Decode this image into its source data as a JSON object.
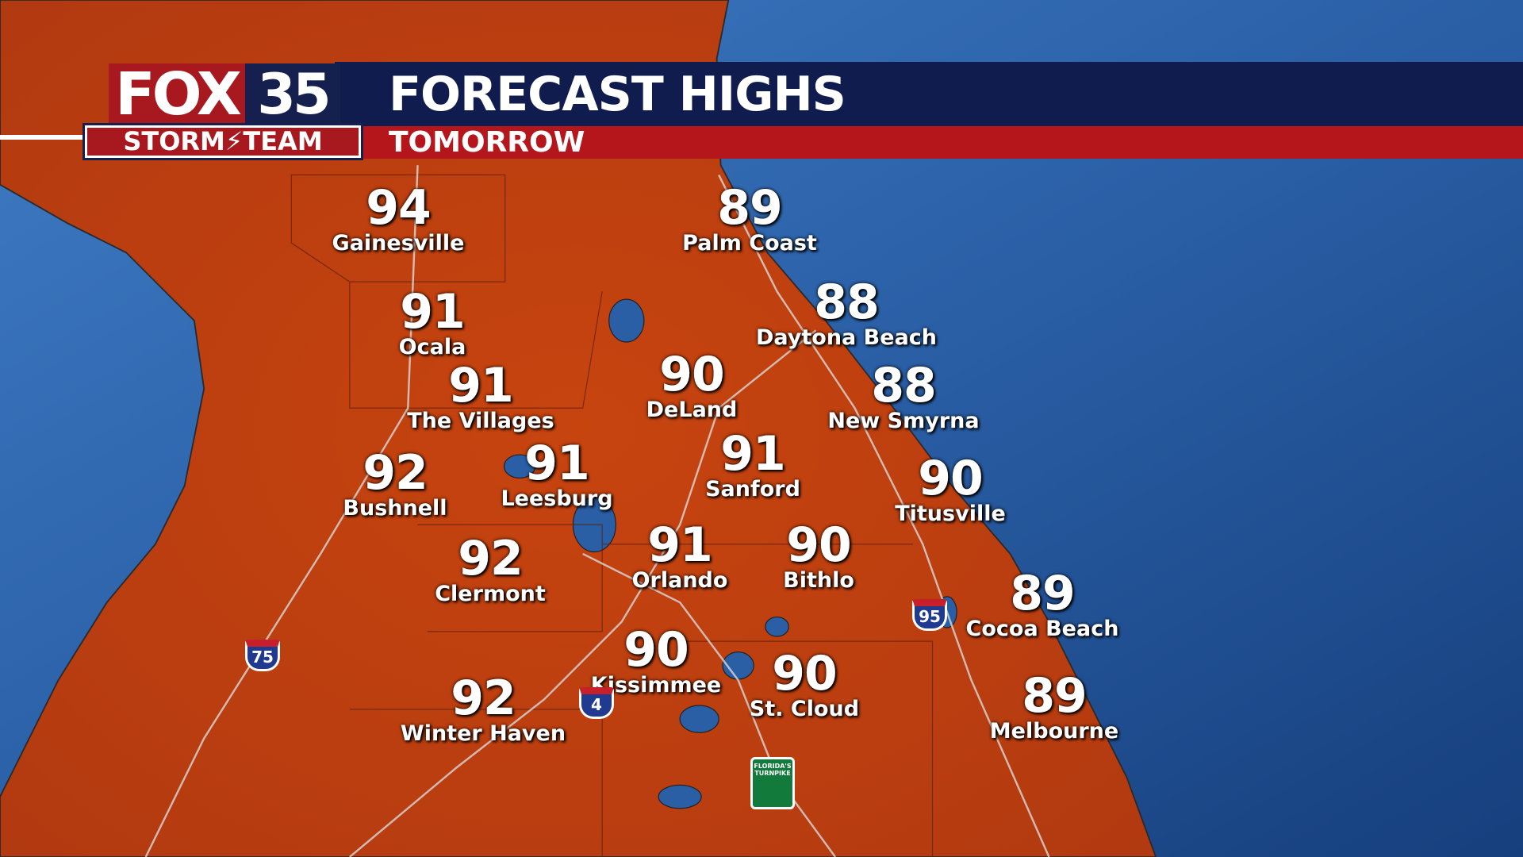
{
  "header": {
    "title": "FORECAST HIGHS",
    "subtitle": "TOMORROW"
  },
  "logo": {
    "fox": "FOX",
    "channel": "35",
    "team": "STORM⚡TEAM"
  },
  "colors": {
    "land": "#c2410f",
    "ocean": "#2a5fa6",
    "header_navy": "#0f1c4d",
    "header_red": "#b5161c"
  },
  "cities": [
    {
      "name": "Gainesville",
      "temp": "94"
    },
    {
      "name": "Palm Coast",
      "temp": "89"
    },
    {
      "name": "Ocala",
      "temp": "91"
    },
    {
      "name": "Daytona Beach",
      "temp": "88"
    },
    {
      "name": "The Villages",
      "temp": "91"
    },
    {
      "name": "DeLand",
      "temp": "90"
    },
    {
      "name": "New Smyrna",
      "temp": "88"
    },
    {
      "name": "Bushnell",
      "temp": "92"
    },
    {
      "name": "Leesburg",
      "temp": "91"
    },
    {
      "name": "Sanford",
      "temp": "91"
    },
    {
      "name": "Titusville",
      "temp": "90"
    },
    {
      "name": "Clermont",
      "temp": "92"
    },
    {
      "name": "Orlando",
      "temp": "91"
    },
    {
      "name": "Bithlo",
      "temp": "90"
    },
    {
      "name": "Cocoa Beach",
      "temp": "89"
    },
    {
      "name": "Kissimmee",
      "temp": "90"
    },
    {
      "name": "St. Cloud",
      "temp": "90"
    },
    {
      "name": "Winter Haven",
      "temp": "92"
    },
    {
      "name": "Melbourne",
      "temp": "89"
    }
  ],
  "shields": {
    "i75": "75",
    "i95": "95",
    "i4": "4",
    "turnpike": "FLORIDA'S TURNPIKE"
  }
}
